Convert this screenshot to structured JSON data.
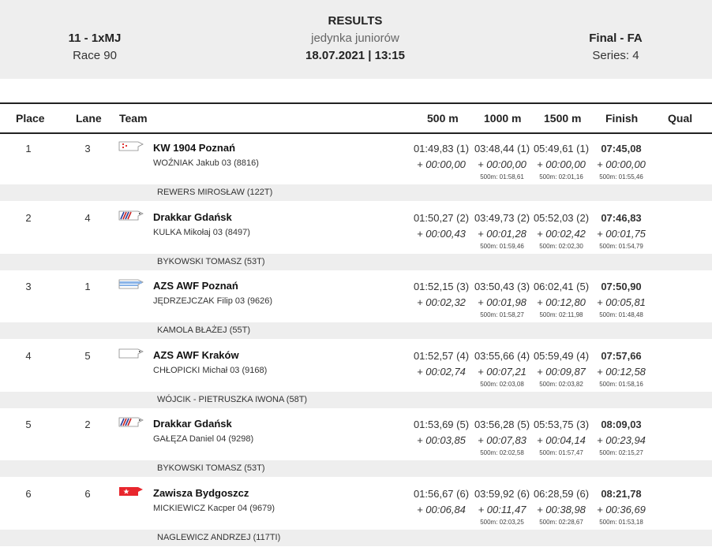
{
  "header": {
    "event_code": "11 - 1xMJ",
    "race": "Race 90",
    "title": "RESULTS",
    "subtitle": "jedynka juniorów",
    "datetime": "18.07.2021 | 13:15",
    "final": "Final - FA",
    "series": "Series: 4"
  },
  "columns": {
    "place": "Place",
    "lane": "Lane",
    "team": "Team",
    "m500": "500 m",
    "m1000": "1000 m",
    "m1500": "1500 m",
    "finish": "Finish",
    "qual": "Qual"
  },
  "rows": [
    {
      "place": "1",
      "lane": "3",
      "club": "KW 1904 Poznań",
      "rower": "WOŹNIAK  Jakub 03 (8816)",
      "coach": "REWERS MIROSŁAW (122T)",
      "flag": "kw1904",
      "m500": {
        "t": "01:49,83 (1)",
        "d": "+ 00:00,00",
        "s": ""
      },
      "m1000": {
        "t": "03:48,44 (1)",
        "d": "+ 00:00,00",
        "s": "500m: 01:58,61"
      },
      "m1500": {
        "t": "05:49,61 (1)",
        "d": "+ 00:00,00",
        "s": "500m: 02:01,16"
      },
      "finish": {
        "t": "07:45,08",
        "d": "+ 00:00,00",
        "s": "500m: 01:55,46"
      }
    },
    {
      "place": "2",
      "lane": "4",
      "club": "Drakkar Gdańsk",
      "rower": "KULKA  Mikołaj 03 (8497)",
      "coach": "BYKOWSKI TOMASZ (53T)",
      "flag": "drakkar",
      "m500": {
        "t": "01:50,27 (2)",
        "d": "+ 00:00,43",
        "s": ""
      },
      "m1000": {
        "t": "03:49,73 (2)",
        "d": "+ 00:01,28",
        "s": "500m: 01:59,46"
      },
      "m1500": {
        "t": "05:52,03 (2)",
        "d": "+ 00:02,42",
        "s": "500m: 02:02,30"
      },
      "finish": {
        "t": "07:46,83",
        "d": "+ 00:01,75",
        "s": "500m: 01:54,79"
      }
    },
    {
      "place": "3",
      "lane": "1",
      "club": "AZS AWF Poznań",
      "rower": "JĘDRZEJCZAK  Filip 03 (9626)",
      "coach": "KAMOLA BŁAŻEJ (55T)",
      "flag": "azspoz",
      "m500": {
        "t": "01:52,15 (3)",
        "d": "+ 00:02,32",
        "s": ""
      },
      "m1000": {
        "t": "03:50,43 (3)",
        "d": "+ 00:01,98",
        "s": "500m: 01:58,27"
      },
      "m1500": {
        "t": "06:02,41 (5)",
        "d": "+ 00:12,80",
        "s": "500m: 02:11,98"
      },
      "finish": {
        "t": "07:50,90",
        "d": "+ 00:05,81",
        "s": "500m: 01:48,48"
      }
    },
    {
      "place": "4",
      "lane": "5",
      "club": "AZS AWF Kraków",
      "rower": "CHŁOPICKI  Michał 03 (9168)",
      "coach": "WÓJCIK - PIETRUSZKA IWONA (58T)",
      "flag": "azskrk",
      "m500": {
        "t": "01:52,57 (4)",
        "d": "+ 00:02,74",
        "s": ""
      },
      "m1000": {
        "t": "03:55,66 (4)",
        "d": "+ 00:07,21",
        "s": "500m: 02:03,08"
      },
      "m1500": {
        "t": "05:59,49 (4)",
        "d": "+ 00:09,87",
        "s": "500m: 02:03,82"
      },
      "finish": {
        "t": "07:57,66",
        "d": "+ 00:12,58",
        "s": "500m: 01:58,16"
      }
    },
    {
      "place": "5",
      "lane": "2",
      "club": "Drakkar Gdańsk",
      "rower": "GAŁĘZA  Daniel 04 (9298)",
      "coach": "BYKOWSKI TOMASZ (53T)",
      "flag": "drakkar",
      "m500": {
        "t": "01:53,69 (5)",
        "d": "+ 00:03,85",
        "s": ""
      },
      "m1000": {
        "t": "03:56,28 (5)",
        "d": "+ 00:07,83",
        "s": "500m: 02:02,58"
      },
      "m1500": {
        "t": "05:53,75 (3)",
        "d": "+ 00:04,14",
        "s": "500m: 01:57,47"
      },
      "finish": {
        "t": "08:09,03",
        "d": "+ 00:23,94",
        "s": "500m: 02:15,27"
      }
    },
    {
      "place": "6",
      "lane": "6",
      "club": "Zawisza Bydgoszcz",
      "rower": "MICKIEWICZ  Kacper 04 (9679)",
      "coach": "NAGLEWICZ ANDRZEJ (117TI)",
      "flag": "zawisza",
      "m500": {
        "t": "01:56,67 (6)",
        "d": "+ 00:06,84",
        "s": ""
      },
      "m1000": {
        "t": "03:59,92 (6)",
        "d": "+ 00:11,47",
        "s": "500m: 02:03,25"
      },
      "m1500": {
        "t": "06:28,59 (6)",
        "d": "+ 00:38,98",
        "s": "500m: 02:28,67"
      },
      "finish": {
        "t": "08:21,78",
        "d": "+ 00:36,69",
        "s": "500m: 01:53,18"
      }
    }
  ],
  "colors": {
    "header_bg": "#eeeeee",
    "zawisza_red": "#e8262d",
    "drakkar_blue": "#2b3f9a",
    "azs_blue": "#8ab4e8"
  }
}
